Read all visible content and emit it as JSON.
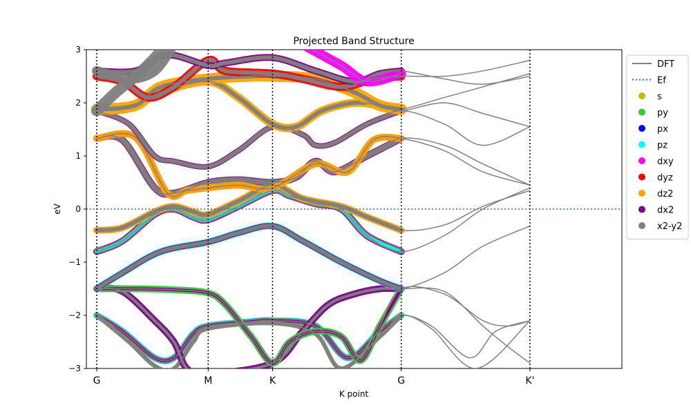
{
  "chart_data": {
    "type": "line",
    "title": "Projected Band Structure",
    "xlabel": "K point",
    "ylabel": "eV",
    "ylim": [
      -3,
      3
    ],
    "xlim": [
      0,
      4
    ],
    "yticks": [
      -3,
      -2,
      -1,
      0,
      1,
      2,
      3
    ],
    "kpoints": [
      {
        "label": "G",
        "x": 0
      },
      {
        "label": "M",
        "x": 0.866
      },
      {
        "label": "K",
        "x": 1.366
      },
      {
        "label": "G",
        "x": 2.366
      },
      {
        "label": "K'",
        "x": 3.366
      }
    ],
    "fermi_level": 0,
    "legend_position": "outside-right",
    "legend": [
      {
        "label": "DFT",
        "kind": "line",
        "color": "#808080"
      },
      {
        "label": "Ef",
        "kind": "dotted",
        "color": "#1f77b4"
      },
      {
        "label": "s",
        "kind": "marker",
        "color": "#bfbf00"
      },
      {
        "label": "py",
        "kind": "marker",
        "color": "#32cd32"
      },
      {
        "label": "px",
        "kind": "marker",
        "color": "#0000ff"
      },
      {
        "label": "pz",
        "kind": "marker",
        "color": "#00ffff"
      },
      {
        "label": "dxy",
        "kind": "marker",
        "color": "#ff00ff"
      },
      {
        "label": "dyz",
        "kind": "marker",
        "color": "#ff0000"
      },
      {
        "label": "dz2",
        "kind": "marker",
        "color": "#ffa500"
      },
      {
        "label": "dx2",
        "kind": "marker",
        "color": "#800080"
      },
      {
        "label": "x2-y2",
        "kind": "marker",
        "color": "#808080"
      }
    ],
    "bands": [
      {
        "points": [
          [
            0,
            -2.0
          ],
          [
            0.2,
            -2.3
          ],
          [
            0.45,
            -2.8
          ],
          [
            0.6,
            -2.8
          ],
          [
            0.75,
            -2.35
          ],
          [
            0.866,
            -2.2
          ],
          [
            1.2,
            -2.12
          ],
          [
            1.366,
            -2.1
          ],
          [
            1.7,
            -2.2
          ],
          [
            1.95,
            -2.8
          ],
          [
            2.2,
            -2.3
          ],
          [
            2.366,
            -2.0
          ],
          [
            2.6,
            -2.2
          ],
          [
            2.9,
            -2.8
          ],
          [
            3.1,
            -2.3
          ],
          [
            3.366,
            -2.1
          ]
        ],
        "proj": [
          [
            "#00ffff",
            5
          ],
          [
            "#808080",
            4
          ],
          [
            "#800080",
            2
          ]
        ]
      },
      {
        "points": [
          [
            0,
            -2.0
          ],
          [
            0.25,
            -2.5
          ],
          [
            0.45,
            -2.95
          ],
          [
            0.6,
            -3.0
          ],
          [
            0.75,
            -2.5
          ],
          [
            0.866,
            -2.25
          ],
          [
            1.366,
            -2.15
          ],
          [
            1.7,
            -2.35
          ],
          [
            1.9,
            -3.0
          ],
          [
            2.2,
            -2.4
          ],
          [
            2.366,
            -2.0
          ],
          [
            2.6,
            -2.25
          ],
          [
            2.95,
            -3.0
          ],
          [
            3.366,
            -2.1
          ]
        ],
        "proj": [
          [
            "#bfbf00",
            3
          ],
          [
            "#808080",
            3
          ]
        ]
      },
      {
        "points": [
          [
            0,
            -1.5
          ],
          [
            0.2,
            -1.55
          ],
          [
            0.45,
            -2.1
          ],
          [
            0.6,
            -2.5
          ],
          [
            0.7,
            -3.0
          ],
          [
            0.866,
            -3.1
          ],
          [
            1.366,
            -2.9
          ],
          [
            1.6,
            -2.3
          ],
          [
            1.8,
            -1.8
          ],
          [
            2.0,
            -1.6
          ],
          [
            2.2,
            -1.5
          ],
          [
            2.366,
            -1.5
          ],
          [
            2.7,
            -1.55
          ],
          [
            3.0,
            -2.2
          ],
          [
            3.2,
            -2.6
          ],
          [
            3.366,
            -2.9
          ]
        ],
        "proj": [
          [
            "#800080",
            5
          ],
          [
            "#0000ff",
            2
          ],
          [
            "#808080",
            2
          ]
        ]
      },
      {
        "points": [
          [
            0,
            -1.5
          ],
          [
            0.3,
            -1.5
          ],
          [
            0.6,
            -1.52
          ],
          [
            0.866,
            -1.58
          ],
          [
            1.0,
            -1.8
          ],
          [
            1.2,
            -2.4
          ],
          [
            1.366,
            -2.9
          ],
          [
            1.5,
            -2.5
          ],
          [
            1.7,
            -2.3
          ],
          [
            1.9,
            -2.4
          ],
          [
            2.05,
            -2.85
          ],
          [
            2.2,
            -2.2
          ],
          [
            2.366,
            -1.5
          ],
          [
            2.7,
            -1.6
          ],
          [
            3.0,
            -2.1
          ],
          [
            3.2,
            -2.2
          ],
          [
            3.366,
            -2.1
          ]
        ],
        "proj": [
          [
            "#32cd32",
            5
          ],
          [
            "#808080",
            3
          ],
          [
            "#800080",
            2
          ]
        ]
      },
      {
        "points": [
          [
            0,
            -1.5
          ],
          [
            0.2,
            -1.2
          ],
          [
            0.5,
            -0.8
          ],
          [
            0.866,
            -0.62
          ],
          [
            1.1,
            -0.45
          ],
          [
            1.366,
            -0.32
          ],
          [
            1.6,
            -0.6
          ],
          [
            1.9,
            -1.0
          ],
          [
            2.2,
            -1.35
          ],
          [
            2.366,
            -1.5
          ],
          [
            2.7,
            -1.2
          ],
          [
            3.0,
            -0.7
          ],
          [
            3.366,
            -0.32
          ]
        ],
        "proj": [
          [
            "#00ffff",
            5
          ],
          [
            "#800080",
            4
          ],
          [
            "#808080",
            3
          ]
        ]
      },
      {
        "points": [
          [
            0,
            -0.8
          ],
          [
            0.2,
            -0.6
          ],
          [
            0.45,
            -0.1
          ],
          [
            0.6,
            0.0
          ],
          [
            0.75,
            -0.15
          ],
          [
            0.866,
            -0.2
          ],
          [
            1.1,
            0.05
          ],
          [
            1.366,
            0.35
          ],
          [
            1.5,
            0.25
          ],
          [
            1.7,
            0.1
          ],
          [
            1.9,
            0.0
          ],
          [
            2.1,
            -0.5
          ],
          [
            2.366,
            -0.8
          ],
          [
            2.7,
            -0.5
          ],
          [
            3.0,
            0.0
          ],
          [
            3.366,
            0.4
          ]
        ],
        "proj": [
          [
            "#800080",
            5
          ],
          [
            "#808080",
            4
          ],
          [
            "#00ffff",
            2
          ]
        ]
      },
      {
        "points": [
          [
            0,
            -0.4
          ],
          [
            0.2,
            -0.35
          ],
          [
            0.45,
            -0.05
          ],
          [
            0.6,
            0.05
          ],
          [
            0.75,
            -0.05
          ],
          [
            0.866,
            -0.1
          ],
          [
            1.1,
            0.15
          ],
          [
            1.366,
            0.45
          ],
          [
            1.6,
            0.2
          ],
          [
            1.9,
            0.05
          ],
          [
            2.1,
            -0.15
          ],
          [
            2.366,
            -0.4
          ],
          [
            2.7,
            -0.3
          ],
          [
            3.0,
            0.05
          ],
          [
            3.366,
            0.35
          ]
        ],
        "proj": [
          [
            "#ffa500",
            5
          ],
          [
            "#808080",
            3
          ]
        ]
      },
      {
        "points": [
          [
            0,
            1.33
          ],
          [
            0.2,
            1.3
          ],
          [
            0.45,
            0.4
          ],
          [
            0.6,
            0.3
          ],
          [
            0.866,
            0.5
          ],
          [
            1.1,
            0.55
          ],
          [
            1.366,
            0.5
          ],
          [
            1.55,
            0.6
          ],
          [
            1.7,
            0.9
          ],
          [
            1.85,
            0.7
          ],
          [
            2.1,
            1.0
          ],
          [
            2.366,
            1.33
          ],
          [
            2.7,
            1.2
          ],
          [
            3.0,
            0.85
          ],
          [
            3.366,
            0.45
          ]
        ],
        "proj": [
          [
            "#800080",
            5
          ],
          [
            "#808080",
            4
          ]
        ]
      },
      {
        "points": [
          [
            0,
            1.33
          ],
          [
            0.3,
            1.35
          ],
          [
            0.55,
            0.3
          ],
          [
            0.7,
            0.35
          ],
          [
            0.866,
            0.4
          ],
          [
            1.1,
            0.45
          ],
          [
            1.366,
            0.4
          ],
          [
            1.7,
            0.85
          ],
          [
            1.95,
            0.7
          ],
          [
            2.15,
            1.3
          ],
          [
            2.366,
            1.33
          ],
          [
            2.7,
            1.1
          ],
          [
            3.0,
            0.7
          ],
          [
            3.366,
            0.45
          ]
        ],
        "proj": [
          [
            "#ff00ff",
            4
          ],
          [
            "#ffa500",
            5
          ]
        ]
      },
      {
        "points": [
          [
            0,
            1.85
          ],
          [
            0.25,
            1.6
          ],
          [
            0.45,
            1.0
          ],
          [
            0.6,
            0.9
          ],
          [
            0.866,
            0.8
          ],
          [
            1.1,
            1.1
          ],
          [
            1.366,
            1.55
          ],
          [
            1.6,
            1.4
          ],
          [
            1.7,
            1.2
          ],
          [
            1.85,
            1.25
          ],
          [
            2.1,
            1.6
          ],
          [
            2.366,
            1.85
          ],
          [
            2.7,
            1.6
          ],
          [
            3.0,
            1.2
          ],
          [
            3.366,
            1.55
          ]
        ],
        "proj": [
          [
            "#800080",
            4
          ],
          [
            "#808080",
            3
          ]
        ]
      },
      {
        "points": [
          [
            0,
            1.85
          ],
          [
            0.25,
            1.9
          ],
          [
            0.5,
            2.2
          ],
          [
            0.866,
            2.4
          ],
          [
            1.1,
            2.1
          ],
          [
            1.366,
            1.6
          ],
          [
            1.55,
            1.55
          ],
          [
            1.75,
            1.85
          ],
          [
            2.0,
            2.0
          ],
          [
            2.2,
            1.95
          ],
          [
            2.366,
            1.85
          ],
          [
            2.7,
            2.0
          ],
          [
            3.0,
            1.8
          ],
          [
            3.366,
            1.55
          ]
        ],
        "proj": [
          [
            "#ffa500",
            6
          ],
          [
            "#808080",
            3
          ]
        ]
      },
      {
        "points": [
          [
            0,
            1.88
          ],
          [
            0.3,
            1.95
          ],
          [
            0.5,
            2.3
          ],
          [
            0.866,
            2.45
          ],
          [
            1.2,
            2.5
          ],
          [
            1.366,
            2.5
          ],
          [
            1.7,
            2.45
          ],
          [
            2.0,
            2.2
          ],
          [
            2.2,
            1.95
          ],
          [
            2.366,
            1.88
          ],
          [
            2.7,
            2.1
          ],
          [
            3.0,
            2.3
          ],
          [
            3.366,
            2.55
          ]
        ],
        "proj": [
          [
            "#ffa500",
            8
          ],
          [
            "#808080",
            3
          ]
        ]
      },
      {
        "points": [
          [
            0,
            2.5
          ],
          [
            0.2,
            2.4
          ],
          [
            0.4,
            2.1
          ],
          [
            0.6,
            2.3
          ],
          [
            0.866,
            2.8
          ],
          [
            1.0,
            2.6
          ],
          [
            1.366,
            2.55
          ],
          [
            1.6,
            2.45
          ],
          [
            1.9,
            2.3
          ],
          [
            2.15,
            2.45
          ],
          [
            2.366,
            2.5
          ],
          [
            2.7,
            2.5
          ],
          [
            3.0,
            2.6
          ],
          [
            3.366,
            2.8
          ]
        ],
        "proj": [
          [
            "#ff0000",
            6
          ],
          [
            "#808080",
            3
          ]
        ]
      },
      {
        "points": [
          [
            0,
            2.6
          ],
          [
            0.3,
            2.6
          ],
          [
            0.55,
            2.9
          ],
          [
            0.866,
            2.7
          ],
          [
            1.0,
            2.75
          ],
          [
            1.366,
            2.85
          ],
          [
            1.7,
            2.6
          ],
          [
            2.0,
            2.4
          ],
          [
            2.2,
            2.55
          ],
          [
            2.366,
            2.6
          ],
          [
            2.7,
            2.45
          ],
          [
            3.0,
            2.35
          ],
          [
            3.366,
            2.5
          ]
        ],
        "proj": [
          [
            "#800080",
            5
          ],
          [
            "#808080",
            3
          ]
        ]
      },
      {
        "points": [
          [
            0,
            1.85
          ],
          [
            0.15,
            2.2
          ],
          [
            0.35,
            2.6
          ],
          [
            0.55,
            3.1
          ]
        ],
        "proj": [
          [
            "#808080",
            8
          ]
        ]
      },
      {
        "points": [
          [
            0,
            2.6
          ],
          [
            0.25,
            2.45
          ],
          [
            0.45,
            2.6
          ],
          [
            0.6,
            3.1
          ]
        ],
        "proj": [
          [
            "#808080",
            7
          ]
        ]
      },
      {
        "points": [
          [
            1.6,
            3.1
          ],
          [
            1.9,
            2.7
          ],
          [
            2.1,
            2.4
          ],
          [
            2.366,
            2.55
          ]
        ],
        "proj": [
          [
            "#ff00ff",
            7
          ]
        ]
      }
    ]
  }
}
